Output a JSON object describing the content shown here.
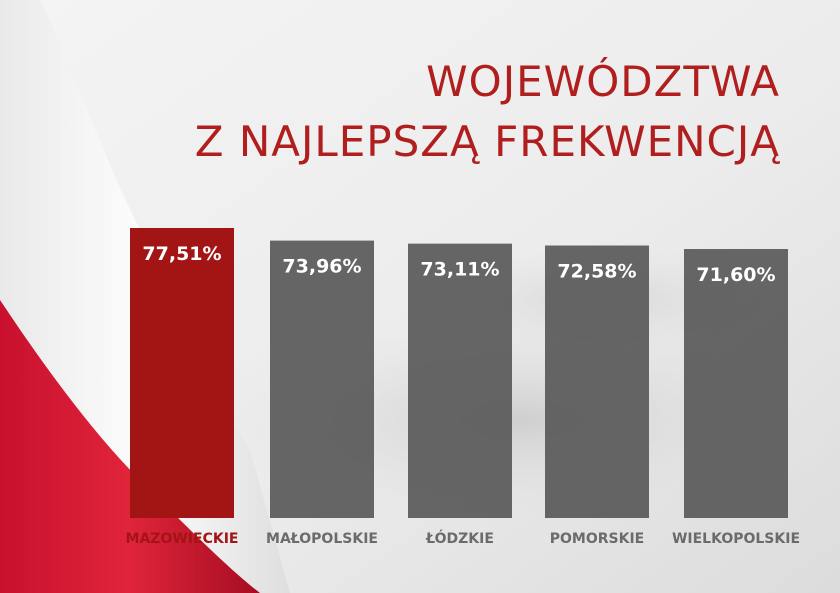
{
  "title": {
    "line1": "WOJEWÓDZTWA",
    "line2": "Z NAJLEPSZĄ FREKWENCJĄ"
  },
  "colors": {
    "accent": "#a31515",
    "bar_gray": "#5a5a5a",
    "label_gray": "#6b6b6b",
    "title": "#b01e1e",
    "value_text": "#ffffff"
  },
  "chart_data": {
    "type": "bar",
    "categories": [
      "MAZOWIECKIE",
      "MAŁOPOLSKIE",
      "ŁÓDZKIE",
      "POMORSKIE",
      "WIELKOPOLSKIE"
    ],
    "values": [
      77.51,
      73.96,
      73.11,
      72.58,
      71.6
    ],
    "value_labels": [
      "77,51%",
      "73,96%",
      "73,11%",
      "72,58%",
      "71,60%"
    ],
    "highlight_index": 0,
    "title": "WOJEWÓDZTWA Z NAJLEPSZĄ FREKWENCJĄ",
    "xlabel": "",
    "ylabel": "",
    "ylim": [
      0,
      80
    ],
    "grid": false
  }
}
